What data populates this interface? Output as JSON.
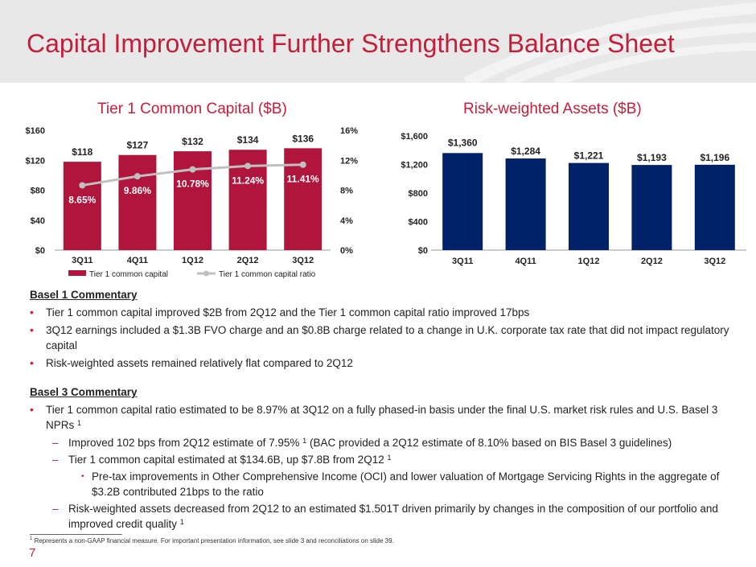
{
  "title": "Capital Improvement Further Strengthens Balance Sheet",
  "chart_data": [
    {
      "type": "bar",
      "title": "Tier 1 Common Capital ($B)",
      "categories": [
        "3Q11",
        "4Q11",
        "1Q12",
        "2Q12",
        "3Q12"
      ],
      "series": [
        {
          "name": "Tier 1 common capital",
          "values": [
            118,
            127,
            132,
            134,
            136
          ],
          "labels": [
            "$118",
            "$127",
            "$132",
            "$134",
            "$136"
          ],
          "axis": "left",
          "color": "#b0153b"
        },
        {
          "name": "Tier 1 common capital ratio",
          "type": "line",
          "values": [
            8.65,
            9.86,
            10.78,
            11.24,
            11.41
          ],
          "labels": [
            "8.65%",
            "9.86%",
            "10.78%",
            "11.24%",
            "11.41%"
          ],
          "axis": "right",
          "color": "#c0c0c0"
        }
      ],
      "ylim": [
        0,
        160
      ],
      "yticks": [
        "$0",
        "$40",
        "$80",
        "$120",
        "$160"
      ],
      "y2lim": [
        0,
        16
      ],
      "y2ticks": [
        "0%",
        "4%",
        "8%",
        "12%",
        "16%"
      ],
      "legend": [
        "Tier 1 common capital",
        "Tier 1 common capital ratio"
      ]
    },
    {
      "type": "bar",
      "title": "Risk-weighted Assets ($B)",
      "categories": [
        "3Q11",
        "4Q11",
        "1Q12",
        "2Q12",
        "3Q12"
      ],
      "series": [
        {
          "name": "Risk-weighted assets",
          "values": [
            1360,
            1284,
            1221,
            1193,
            1196
          ],
          "labels": [
            "$1,360",
            "$1,284",
            "$1,221",
            "$1,193",
            "$1,196"
          ],
          "color": "#012169"
        }
      ],
      "ylim": [
        0,
        1600
      ],
      "yticks": [
        "$0",
        "$400",
        "$800",
        "$1,200",
        "$1,600"
      ]
    }
  ],
  "basel1": {
    "title": "Basel 1 Commentary",
    "b1": "Tier 1 common capital improved $2B from 2Q12 and the Tier 1 common capital ratio improved 17bps",
    "b2": "3Q12 earnings included a $1.3B FVO charge and an $0.8B charge related to a change in U.K. corporate tax rate that did not impact regulatory capital",
    "b3": "Risk-weighted assets remained relatively flat compared to 2Q12"
  },
  "basel3": {
    "title": "Basel 3 Commentary",
    "b1": "Tier 1 common capital ratio estimated to be 8.97% at 3Q12 on a fully phased-in basis under the final U.S. market risk rules and U.S. Basel 3 NPRs",
    "s1a": "Improved 102 bps from 2Q12 estimate of 7.95%",
    "s1b": "(BAC provided a 2Q12 estimate of 8.10% based on BIS Basel 3 guidelines)",
    "s2": "Tier 1 common capital estimated at $134.6B, up $7.8B from 2Q12",
    "s3": "Pre-tax improvements in Other Comprehensive Income (OCI) and lower valuation of Mortgage Servicing Rights in the aggregate of $3.2B contributed 21bps to the ratio",
    "s4": "Risk-weighted assets decreased from 2Q12 to an estimated $1.501T driven primarily by changes in the composition of our portfolio and improved credit quality"
  },
  "footnote_mark": "1",
  "footnote": "Represents a non-GAAP financial measure. For important presentation information, see slide 3 and reconciliations on slide 39.",
  "page_number": "7"
}
